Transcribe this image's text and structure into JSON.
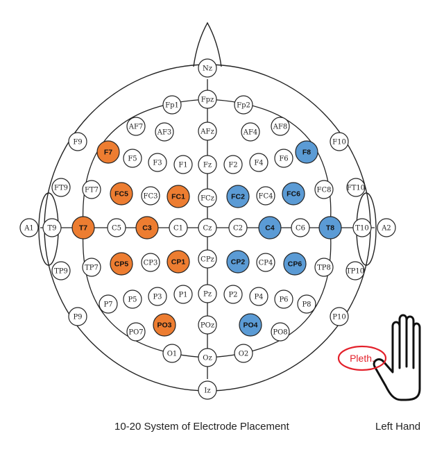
{
  "colors": {
    "left": "#ED7D31",
    "right": "#5B9BD5",
    "default": "#ffffff",
    "stroke": "#222222",
    "pleth": "#E3202A"
  },
  "electrodes": [
    {
      "label": "Nz",
      "group": "default"
    },
    {
      "label": "Fpz",
      "group": "default"
    },
    {
      "label": "Fp1",
      "group": "default"
    },
    {
      "label": "Fp2",
      "group": "default"
    },
    {
      "label": "AF7",
      "group": "default"
    },
    {
      "label": "AF3",
      "group": "default"
    },
    {
      "label": "AFz",
      "group": "default"
    },
    {
      "label": "AF4",
      "group": "default"
    },
    {
      "label": "AF8",
      "group": "default"
    },
    {
      "label": "F9",
      "group": "default"
    },
    {
      "label": "F7",
      "group": "left"
    },
    {
      "label": "F5",
      "group": "default"
    },
    {
      "label": "F3",
      "group": "default"
    },
    {
      "label": "F1",
      "group": "default"
    },
    {
      "label": "Fz",
      "group": "default"
    },
    {
      "label": "F2",
      "group": "default"
    },
    {
      "label": "F4",
      "group": "default"
    },
    {
      "label": "F6",
      "group": "default"
    },
    {
      "label": "F8",
      "group": "right"
    },
    {
      "label": "F10",
      "group": "default"
    },
    {
      "label": "FT9",
      "group": "default"
    },
    {
      "label": "FT7",
      "group": "default"
    },
    {
      "label": "FC5",
      "group": "left"
    },
    {
      "label": "FC3",
      "group": "default"
    },
    {
      "label": "FC1",
      "group": "left"
    },
    {
      "label": "FCz",
      "group": "default"
    },
    {
      "label": "FC2",
      "group": "right"
    },
    {
      "label": "FC4",
      "group": "default"
    },
    {
      "label": "FC6",
      "group": "right"
    },
    {
      "label": "FC8",
      "group": "default"
    },
    {
      "label": "FT10",
      "group": "default"
    },
    {
      "label": "A1",
      "group": "default"
    },
    {
      "label": "T9",
      "group": "default"
    },
    {
      "label": "T7",
      "group": "left"
    },
    {
      "label": "C5",
      "group": "default"
    },
    {
      "label": "C3",
      "group": "left"
    },
    {
      "label": "C1",
      "group": "default"
    },
    {
      "label": "Cz",
      "group": "default"
    },
    {
      "label": "C2",
      "group": "default"
    },
    {
      "label": "C4",
      "group": "right"
    },
    {
      "label": "C6",
      "group": "default"
    },
    {
      "label": "T8",
      "group": "right"
    },
    {
      "label": "T10",
      "group": "default"
    },
    {
      "label": "A2",
      "group": "default"
    },
    {
      "label": "TP9",
      "group": "default"
    },
    {
      "label": "TP7",
      "group": "default"
    },
    {
      "label": "CP5",
      "group": "left"
    },
    {
      "label": "CP3",
      "group": "default"
    },
    {
      "label": "CP1",
      "group": "left"
    },
    {
      "label": "CPz",
      "group": "default"
    },
    {
      "label": "CP2",
      "group": "right"
    },
    {
      "label": "CP4",
      "group": "default"
    },
    {
      "label": "CP6",
      "group": "right"
    },
    {
      "label": "TP8",
      "group": "default"
    },
    {
      "label": "TP10",
      "group": "default"
    },
    {
      "label": "P9",
      "group": "default"
    },
    {
      "label": "P7",
      "group": "default"
    },
    {
      "label": "P5",
      "group": "default"
    },
    {
      "label": "P3",
      "group": "default"
    },
    {
      "label": "P1",
      "group": "default"
    },
    {
      "label": "Pz",
      "group": "default"
    },
    {
      "label": "P2",
      "group": "default"
    },
    {
      "label": "P4",
      "group": "default"
    },
    {
      "label": "P6",
      "group": "default"
    },
    {
      "label": "P8",
      "group": "default"
    },
    {
      "label": "P10",
      "group": "default"
    },
    {
      "label": "PO7",
      "group": "default"
    },
    {
      "label": "PO3",
      "group": "left"
    },
    {
      "label": "POz",
      "group": "default"
    },
    {
      "label": "PO4",
      "group": "right"
    },
    {
      "label": "PO8",
      "group": "default"
    },
    {
      "label": "O1",
      "group": "default"
    },
    {
      "label": "Oz",
      "group": "default"
    },
    {
      "label": "O2",
      "group": "default"
    },
    {
      "label": "Iz",
      "group": "default"
    }
  ],
  "hand": {
    "pleth_label": "Pleth.",
    "icon": "left-hand-icon"
  },
  "captions": {
    "main": "10-20 System of Electrode Placement",
    "hand": "Left Hand"
  }
}
